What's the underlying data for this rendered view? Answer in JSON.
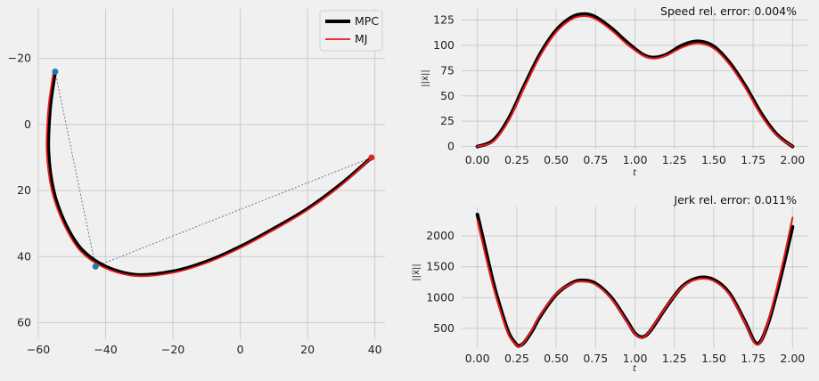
{
  "chart_data": [
    {
      "type": "line",
      "panel": "trajectory",
      "xlim": [
        -60,
        43
      ],
      "ylim": [
        65,
        -35
      ],
      "y_inverted": true,
      "xticks": [
        -60,
        -40,
        -20,
        0,
        20,
        40
      ],
      "yticks": [
        -20,
        0,
        20,
        40,
        60
      ],
      "xtick_labels": [
        "−60",
        "−40",
        "−20",
        "0",
        "20",
        "40"
      ],
      "ytick_labels": [
        "−20",
        "0",
        "20",
        "40",
        "60"
      ],
      "grid": true,
      "legend": {
        "placement": "top-right",
        "entries": [
          {
            "name": "MPC",
            "color": "#000000"
          },
          {
            "name": "MJ",
            "color": "#e8191c"
          }
        ]
      },
      "control_points": [
        {
          "x": -55,
          "y": -16,
          "color": "#1f77b4"
        },
        {
          "x": -43,
          "y": 43,
          "color": "#1f77b4"
        },
        {
          "x": 39,
          "y": 10,
          "color": "#d62728"
        }
      ],
      "series": [
        {
          "name": "MPC",
          "color": "#000000",
          "points": [
            [
              -55,
              -16
            ],
            [
              -56.5,
              -5
            ],
            [
              -57,
              8
            ],
            [
              -55.5,
              20
            ],
            [
              -52,
              30
            ],
            [
              -47,
              38
            ],
            [
              -40,
              43
            ],
            [
              -31,
              45.5
            ],
            [
              -20,
              44.5
            ],
            [
              -10,
              41.5
            ],
            [
              0,
              37
            ],
            [
              10,
              31.5
            ],
            [
              20,
              25.5
            ],
            [
              30,
              18
            ],
            [
              39,
              10
            ]
          ]
        },
        {
          "name": "MJ",
          "color": "#e8191c",
          "points": [
            [
              -55.5,
              -16
            ],
            [
              -57,
              -5
            ],
            [
              -57.5,
              8
            ],
            [
              -56,
              20
            ],
            [
              -52.5,
              30
            ],
            [
              -47.5,
              38.3
            ],
            [
              -40.5,
              43.3
            ],
            [
              -31,
              45.9
            ],
            [
              -20,
              44.9
            ],
            [
              -10,
              41.9
            ],
            [
              0,
              37.4
            ],
            [
              10,
              31.9
            ],
            [
              20,
              25.9
            ],
            [
              30,
              18.4
            ],
            [
              38.7,
              10.4
            ]
          ]
        }
      ]
    },
    {
      "type": "line",
      "panel": "speed",
      "annotation": "Speed rel. error: 0.004%",
      "ylabel": "||ẋ||",
      "xlabel": "t",
      "xlim": [
        -0.1,
        2.1
      ],
      "ylim": [
        -3,
        136
      ],
      "xticks": [
        0.0,
        0.25,
        0.5,
        0.75,
        1.0,
        1.25,
        1.5,
        1.75,
        2.0
      ],
      "xtick_labels": [
        "0.00",
        "0.25",
        "0.50",
        "0.75",
        "1.00",
        "1.25",
        "1.50",
        "1.75",
        "2.00"
      ],
      "yticks": [
        0,
        25,
        50,
        75,
        100,
        125
      ],
      "ytick_labels": [
        "0",
        "25",
        "50",
        "75",
        "100",
        "125"
      ],
      "grid": true,
      "series": [
        {
          "name": "MPC",
          "color": "#000000",
          "x": [
            0,
            0.1,
            0.2,
            0.3,
            0.4,
            0.5,
            0.6,
            0.68,
            0.75,
            0.85,
            0.95,
            1.05,
            1.12,
            1.2,
            1.3,
            1.4,
            1.5,
            1.6,
            1.7,
            1.8,
            1.9,
            2.0
          ],
          "y": [
            0,
            6,
            28,
            61,
            92,
            115,
            128,
            131,
            128,
            117,
            103,
            91,
            88,
            91,
            100,
            104,
            99,
            83,
            60,
            33,
            12,
            0
          ]
        },
        {
          "name": "MJ",
          "color": "#e8191c",
          "x": [
            0,
            0.1,
            0.2,
            0.3,
            0.4,
            0.5,
            0.6,
            0.68,
            0.75,
            0.85,
            0.95,
            1.05,
            1.12,
            1.2,
            1.3,
            1.4,
            1.5,
            1.6,
            1.7,
            1.8,
            1.9,
            2.0
          ],
          "y": [
            0,
            5,
            26,
            59,
            90,
            113,
            126,
            129,
            126,
            115,
            101,
            90,
            87,
            90,
            98,
            102,
            97,
            81,
            58,
            31,
            11,
            0
          ]
        }
      ]
    },
    {
      "type": "line",
      "panel": "jerk",
      "annotation": "Jerk rel. error: 0.011%",
      "ylabel": "||x⃛||",
      "xlabel": "t",
      "xlim": [
        -0.1,
        2.1
      ],
      "ylim": [
        180,
        2480
      ],
      "xticks": [
        0.0,
        0.25,
        0.5,
        0.75,
        1.0,
        1.25,
        1.5,
        1.75,
        2.0
      ],
      "xtick_labels": [
        "0.00",
        "0.25",
        "0.50",
        "0.75",
        "1.00",
        "1.25",
        "1.50",
        "1.75",
        "2.00"
      ],
      "yticks": [
        500,
        1000,
        1500,
        2000
      ],
      "ytick_labels": [
        "500",
        "1000",
        "1500",
        "2000"
      ],
      "grid": true,
      "series": [
        {
          "name": "MPC",
          "color": "#000000",
          "x": [
            0,
            0.05,
            0.1,
            0.15,
            0.2,
            0.25,
            0.27,
            0.3,
            0.35,
            0.4,
            0.5,
            0.6,
            0.67,
            0.75,
            0.85,
            0.95,
            1.0,
            1.05,
            1.1,
            1.2,
            1.3,
            1.4,
            1.5,
            1.6,
            1.7,
            1.76,
            1.8,
            1.85,
            1.9,
            1.95,
            2.0
          ],
          "y": [
            2350,
            1800,
            1250,
            800,
            420,
            230,
            220,
            280,
            470,
            700,
            1050,
            1240,
            1280,
            1230,
            1000,
            620,
            420,
            360,
            470,
            850,
            1180,
            1320,
            1290,
            1070,
            600,
            280,
            300,
            620,
            1080,
            1600,
            2150
          ]
        },
        {
          "name": "MJ",
          "color": "#e8191c",
          "x": [
            0,
            0.05,
            0.1,
            0.15,
            0.2,
            0.25,
            0.27,
            0.3,
            0.35,
            0.4,
            0.5,
            0.6,
            0.67,
            0.75,
            0.85,
            0.95,
            1.0,
            1.05,
            1.1,
            1.2,
            1.3,
            1.4,
            1.5,
            1.6,
            1.7,
            1.76,
            1.8,
            1.85,
            1.9,
            1.95,
            2.0
          ],
          "y": [
            2250,
            1700,
            1180,
            750,
            390,
            220,
            210,
            290,
            490,
            720,
            1060,
            1230,
            1260,
            1210,
            980,
            600,
            410,
            350,
            480,
            860,
            1170,
            1300,
            1270,
            1050,
            580,
            260,
            290,
            650,
            1150,
            1700,
            2300
          ]
        }
      ]
    }
  ]
}
